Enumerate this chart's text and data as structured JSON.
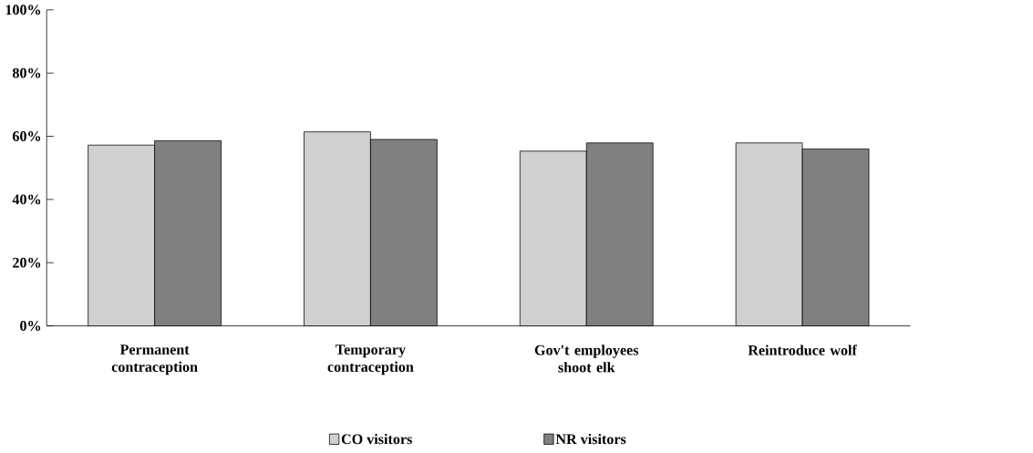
{
  "chart_data": {
    "type": "bar",
    "categories": [
      "Permanent contraception",
      "Temporary contraception",
      "Gov't employees shoot elk",
      "Reintroduce wolf"
    ],
    "series": [
      {
        "name": "CO visitors",
        "color": "#d0d0d0",
        "values": [
          57.2,
          61.4,
          55.3,
          57.9
        ]
      },
      {
        "name": "NR visitors",
        "color": "#808080",
        "values": [
          58.6,
          59.0,
          57.9,
          56.0
        ]
      }
    ],
    "ylim": [
      0,
      100
    ],
    "yticks": [
      {
        "value": 0,
        "label": "0%"
      },
      {
        "value": 20,
        "label": "20%"
      },
      {
        "value": 40,
        "label": "40%"
      },
      {
        "value": 60,
        "label": "60%"
      },
      {
        "value": 80,
        "label": "80%"
      },
      {
        "value": 100,
        "label": "100%"
      }
    ],
    "grid": false,
    "legend": "bottom"
  }
}
